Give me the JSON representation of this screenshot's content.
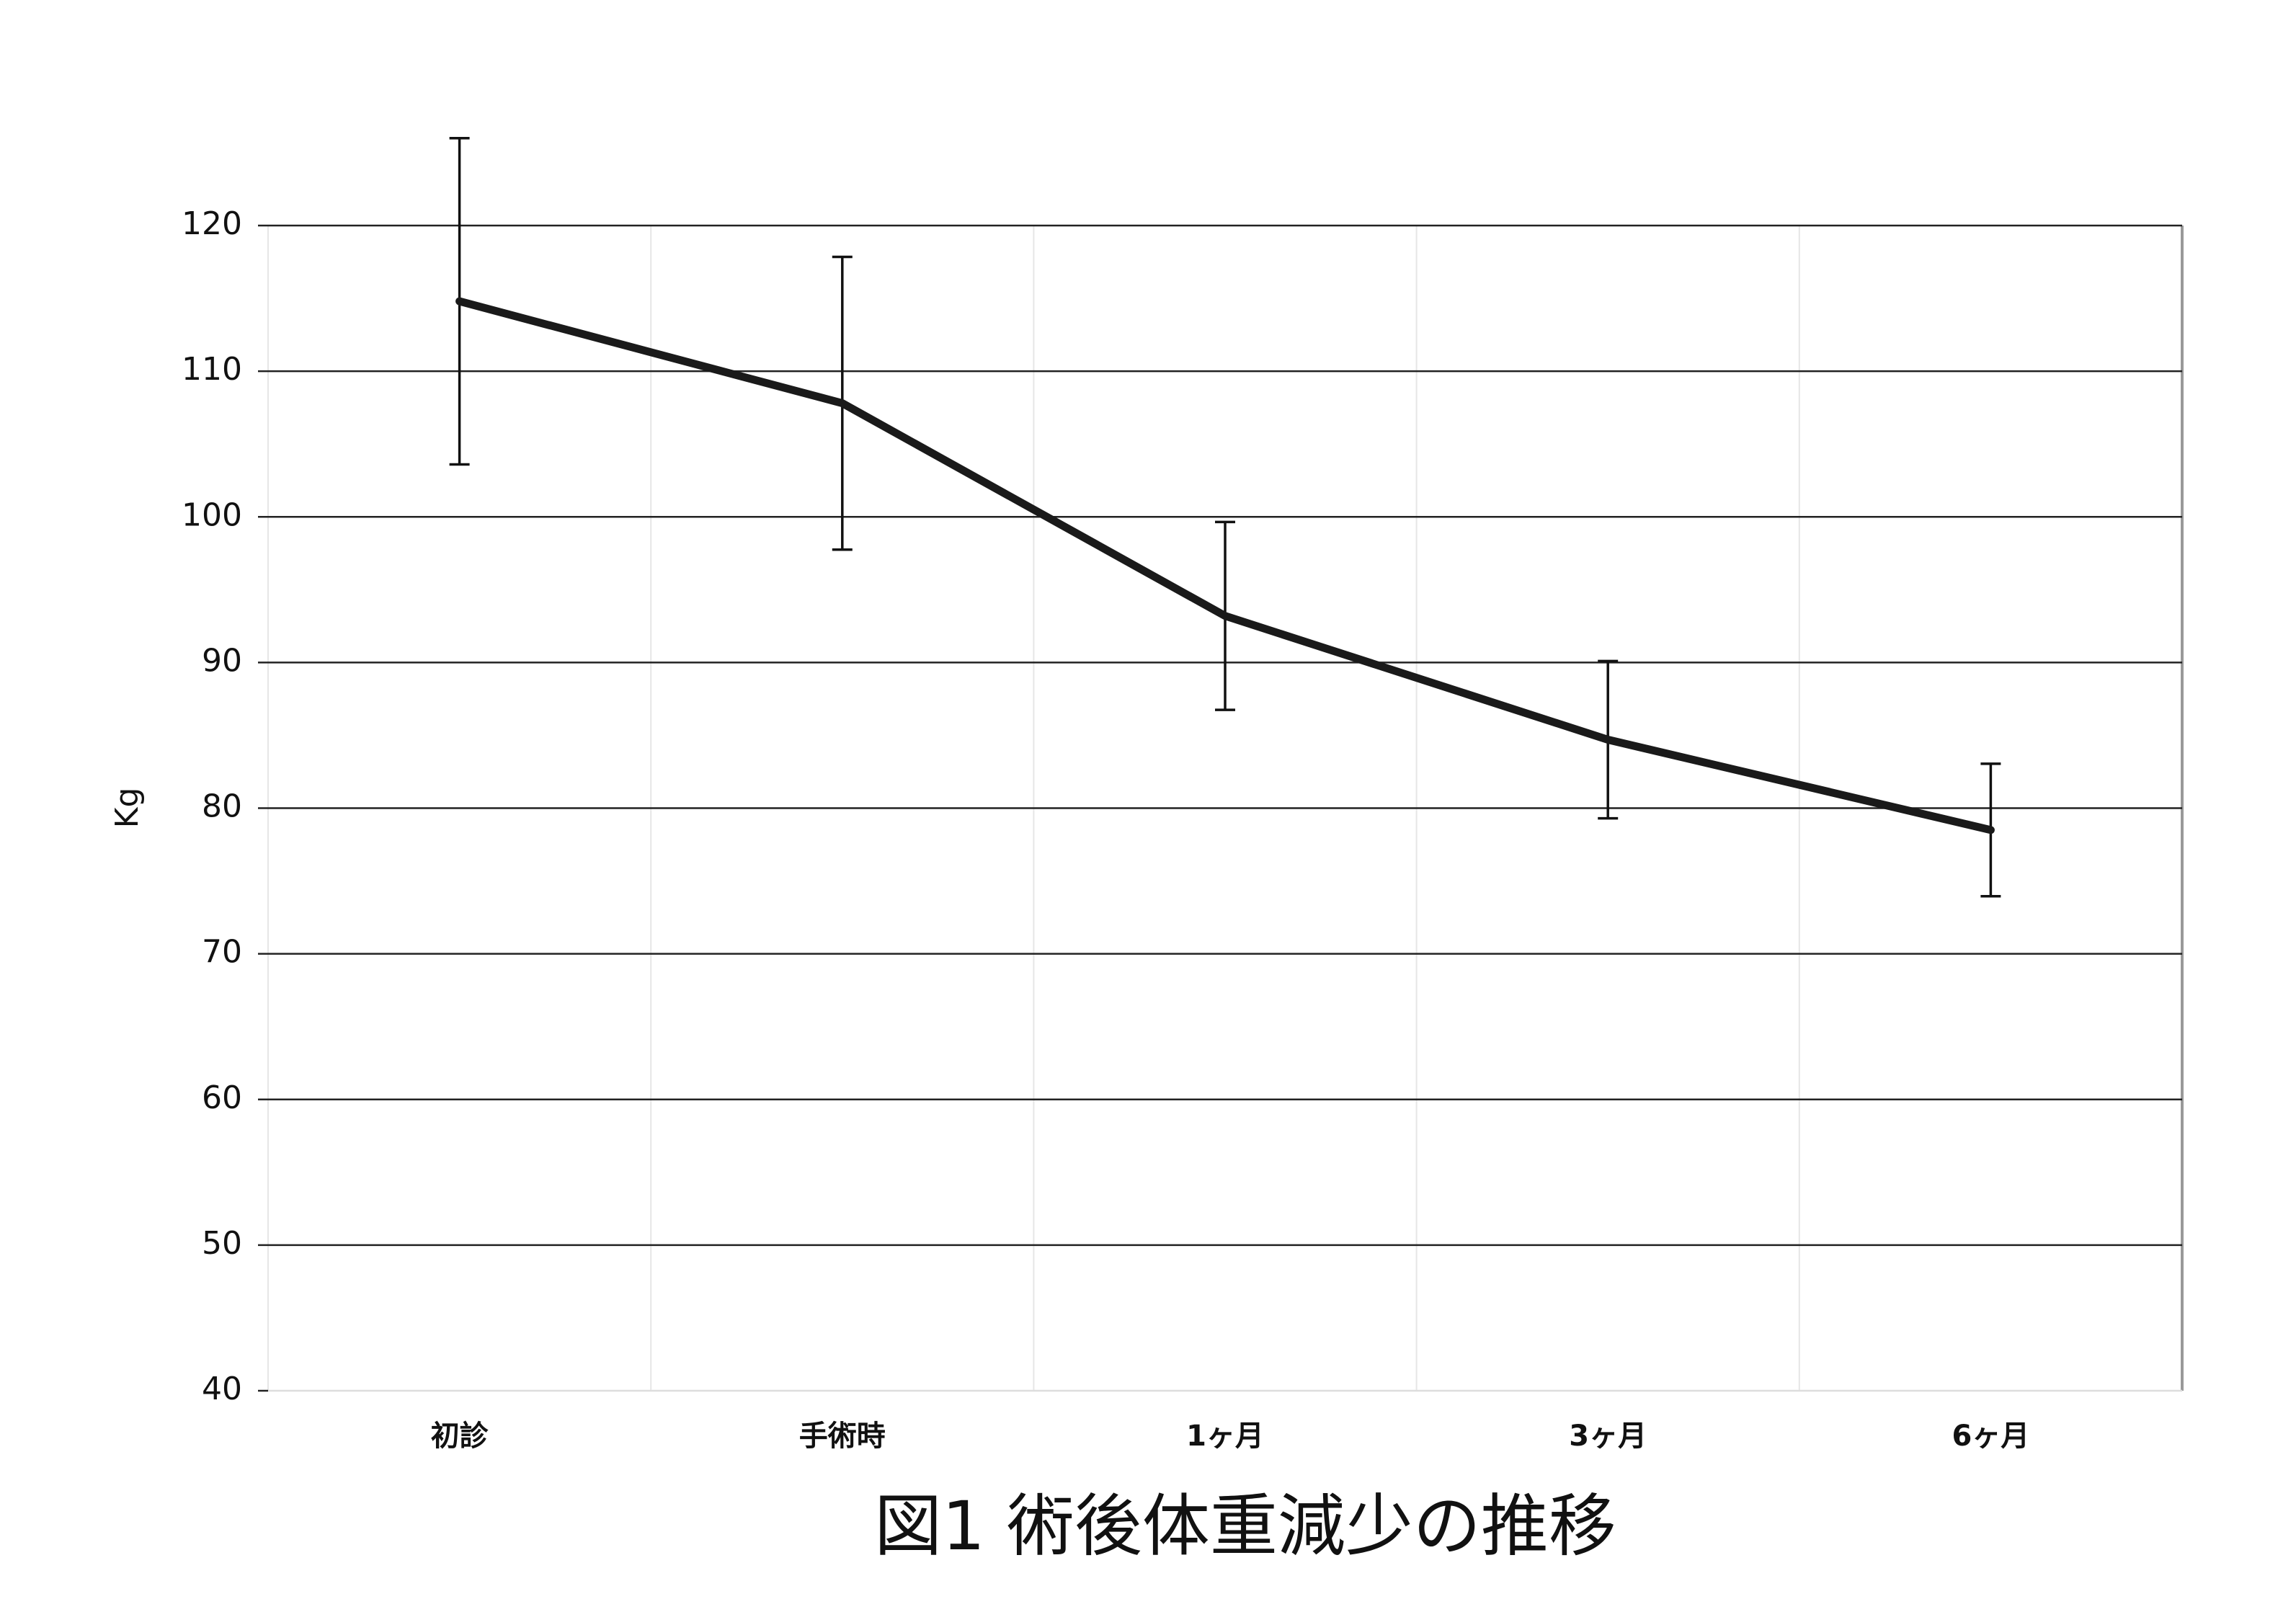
{
  "chart_data": {
    "type": "line",
    "title": "図1 術後体重減少の推移",
    "y_label": "Kg",
    "categories": [
      "初診",
      "手術時",
      "1ヶ月",
      "3ヶ月",
      "6ヶ月"
    ],
    "values": [
      114.8,
      107.8,
      93.2,
      84.7,
      78.5
    ],
    "errors": [
      11.2,
      10.05,
      6.45,
      5.4,
      4.55
    ],
    "color": "#1a1a1a",
    "ylim": [
      40,
      120
    ],
    "yticks": [
      40,
      50,
      60,
      70,
      80,
      90,
      100,
      110,
      120
    ],
    "grid": true
  }
}
